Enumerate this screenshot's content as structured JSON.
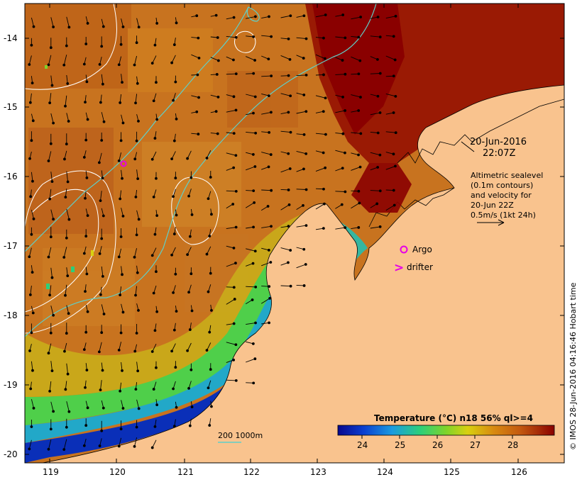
{
  "map": {
    "lat_ticks": [
      "-14",
      "-15",
      "-16",
      "-17",
      "-18",
      "-19",
      "-20"
    ],
    "lon_ticks": [
      "119",
      "120",
      "121",
      "122",
      "123",
      "124",
      "125",
      "126"
    ],
    "land_color": "#f9c38e",
    "ocean_palette": [
      "#08078e",
      "#0b3fd0",
      "#1a9be0",
      "#2ccf7a",
      "#7fd42a",
      "#d8d010",
      "#d88a10",
      "#c45a10",
      "#a52a08",
      "#8a0000"
    ]
  },
  "info": {
    "date": "20-Jun-2016",
    "time": "22:07Z",
    "sealevel_line1": "Altimetric sealevel",
    "sealevel_line2": "(0.1m contours)",
    "sealevel_line3": "and velocity for",
    "sealevel_line4": "20-Jun 22Z",
    "velocity_scale": "0.5m/s (1kt 24h)"
  },
  "legend": {
    "argo": "Argo",
    "drifter": "drifter",
    "drifter_glyph": ">",
    "isobath": "200  1000m",
    "colorbar_title": "Temperature (°C) n18 56% ql>=4",
    "colorbar_ticks": [
      "24",
      "25",
      "26",
      "27",
      "28"
    ]
  },
  "credit": "© IMOS 28-Jun-2016 04:16:46 Hobart time"
}
